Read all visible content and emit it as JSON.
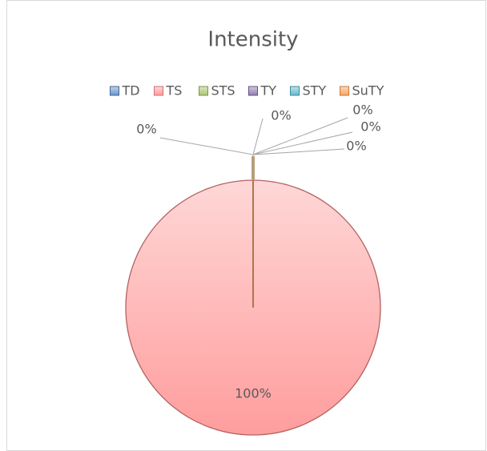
{
  "chart_data": {
    "type": "pie",
    "title": "Intensity",
    "categories": [
      "TD",
      "TS",
      "STS",
      "TY",
      "STY",
      "SuTY"
    ],
    "values": [
      0,
      100,
      0,
      0,
      0,
      0
    ],
    "value_labels": [
      "0%",
      "100%",
      "0%",
      "0%",
      "0%",
      "0%"
    ],
    "colors": [
      "#4f81bd",
      "#ff8c8c",
      "#9bbb59",
      "#8064a2",
      "#4bacc6",
      "#f79646"
    ],
    "legend": "top"
  }
}
